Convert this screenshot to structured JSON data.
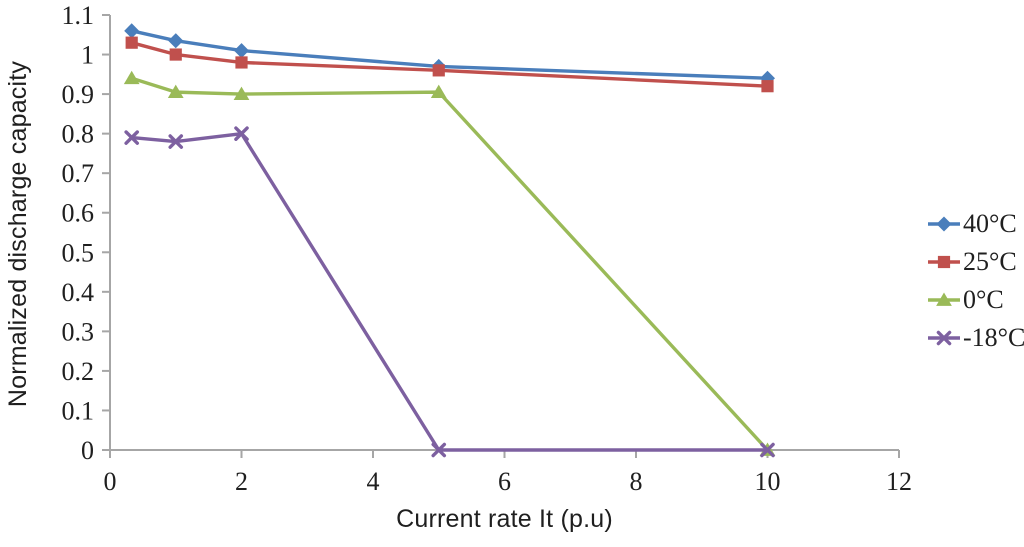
{
  "figure": {
    "background": "#ffffff"
  },
  "colors": {
    "axis": "#a6a6a6",
    "tick_text": "#1f1f1f",
    "title_text": "#1f1f1f"
  },
  "chart_data": {
    "type": "line",
    "title": "",
    "xlabel": "Current rate It (p.u)",
    "ylabel": "Normalized discharge capacity",
    "x": [
      0.33,
      1,
      2,
      5,
      10
    ],
    "series": [
      {
        "name": "40°C",
        "color": "#4a7ebb",
        "marker": "diamond",
        "values": [
          1.06,
          1.035,
          1.01,
          0.97,
          0.94
        ]
      },
      {
        "name": "25°C",
        "color": "#c0504d",
        "marker": "square",
        "values": [
          1.03,
          1.0,
          0.98,
          0.96,
          0.92
        ]
      },
      {
        "name": "0°C",
        "color": "#9aba58",
        "marker": "triangle",
        "values": [
          0.94,
          0.905,
          0.9,
          0.905,
          0
        ]
      },
      {
        "name": "-18°C",
        "color": "#7d60a0",
        "marker": "x",
        "values": [
          0.79,
          0.78,
          0.8,
          0,
          0
        ]
      }
    ],
    "xlim": [
      0,
      12
    ],
    "ylim": [
      0,
      1.1
    ],
    "x_ticks": [
      "0",
      "2",
      "4",
      "6",
      "8",
      "10",
      "12"
    ],
    "y_ticks": [
      "0",
      "0.1",
      "0.2",
      "0.3",
      "0.4",
      "0.5",
      "0.6",
      "0.7",
      "0.8",
      "0.9",
      "1",
      "1.1"
    ],
    "grid": false,
    "legend_position": "right"
  }
}
